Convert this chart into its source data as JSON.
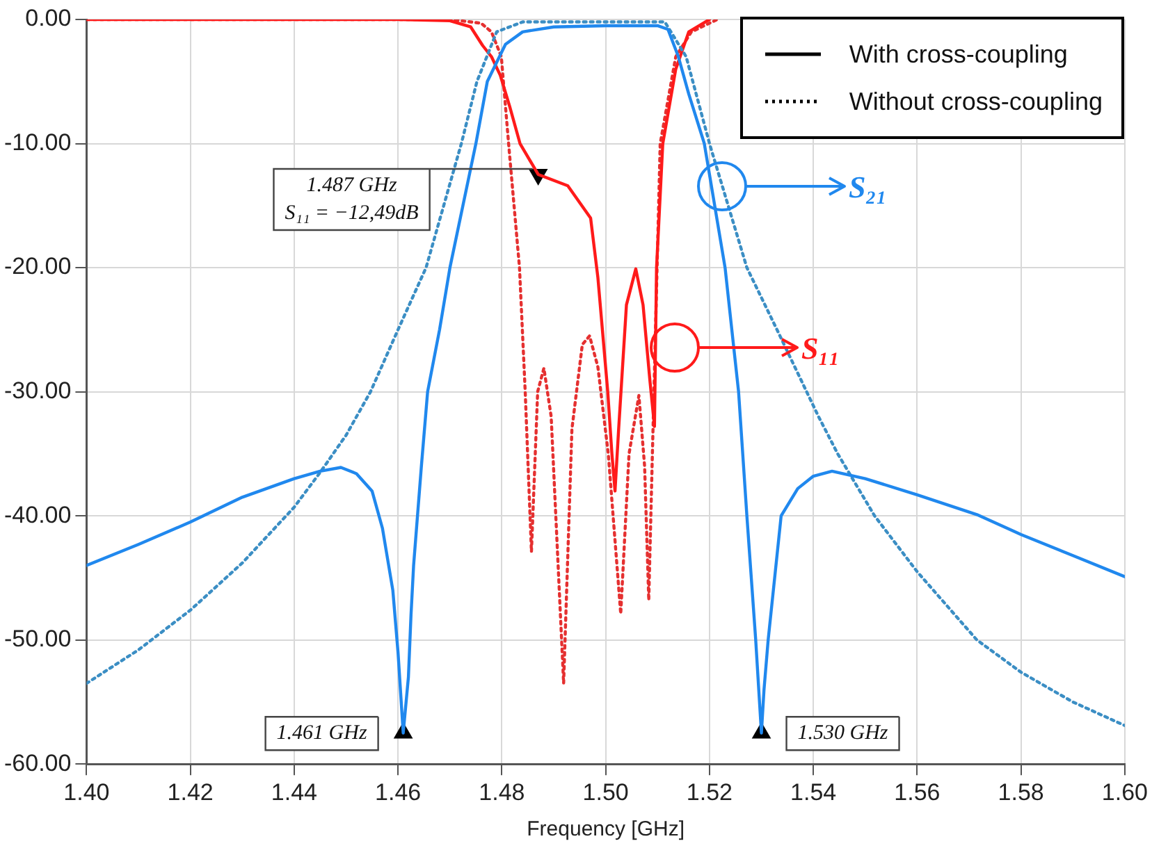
{
  "chart_data": {
    "type": "line",
    "xlabel": "Frequency [GHz]",
    "xlim": [
      1.4,
      1.6
    ],
    "xticks": [
      {
        "value": 1.4,
        "label": "1.40"
      },
      {
        "value": 1.42,
        "label": "1.42"
      },
      {
        "value": 1.44,
        "label": "1.44"
      },
      {
        "value": 1.46,
        "label": "1.46"
      },
      {
        "value": 1.48,
        "label": "1.48"
      },
      {
        "value": 1.5,
        "label": "1.50"
      },
      {
        "value": 1.52,
        "label": "1.52"
      },
      {
        "value": 1.54,
        "label": "1.54"
      },
      {
        "value": 1.56,
        "label": "1.56"
      },
      {
        "value": 1.58,
        "label": "1.58"
      },
      {
        "value": 1.6,
        "label": "1.60"
      }
    ],
    "ylim": [
      -60,
      0
    ],
    "yticks": [
      {
        "value": -60,
        "label": "-60.00"
      },
      {
        "value": -50,
        "label": "-50.00"
      },
      {
        "value": -40,
        "label": "-40.00"
      },
      {
        "value": -30,
        "label": "-30.00"
      },
      {
        "value": -20,
        "label": "-20.00"
      },
      {
        "value": -10,
        "label": "-10.00"
      },
      {
        "value": 0,
        "label": "0.00"
      }
    ],
    "grid": true,
    "marker": "none",
    "series": [
      {
        "color": "#2088ee",
        "line_style": "solid",
        "x": [
          1.4,
          1.41,
          1.42,
          1.43,
          1.44,
          1.445,
          1.449,
          1.452,
          1.455,
          1.457,
          1.459,
          1.46,
          1.461,
          1.462,
          1.4625,
          1.463,
          1.4645,
          1.4657,
          1.468,
          1.47,
          1.4725,
          1.475,
          1.4772,
          1.4807,
          1.484,
          1.49,
          1.5,
          1.51,
          1.512,
          1.514,
          1.516,
          1.519,
          1.523,
          1.5256,
          1.5272,
          1.5289,
          1.53,
          1.5305,
          1.5313,
          1.5338,
          1.537,
          1.54,
          1.5436,
          1.55,
          1.56,
          1.5715,
          1.58,
          1.59,
          1.6
        ],
        "values": [
          -44,
          -42.3,
          -40.5,
          -38.5,
          -37,
          -36.4,
          -36.1,
          -36.6,
          -38,
          -41,
          -46,
          -51,
          -57.5,
          -53,
          -48,
          -44,
          -36,
          -30,
          -25,
          -20,
          -15,
          -10,
          -5,
          -2,
          -1,
          -0.6,
          -0.5,
          -0.5,
          -0.8,
          -3,
          -6,
          -10,
          -20,
          -30,
          -40,
          -50,
          -57.5,
          -54,
          -50,
          -40,
          -37.8,
          -36.8,
          -36.4,
          -37,
          -38.3,
          -39.9,
          -41.5,
          -43.2,
          -44.9
        ]
      },
      {
        "color": "#3b8ec4",
        "line_style": "dotted",
        "x": [
          1.4,
          1.41,
          1.42,
          1.43,
          1.44,
          1.445,
          1.45,
          1.4547,
          1.46,
          1.4654,
          1.4722,
          1.4752,
          1.479,
          1.484,
          1.5,
          1.5114,
          1.5155,
          1.52,
          1.5272,
          1.533,
          1.541,
          1.5447,
          1.5518,
          1.56,
          1.5715,
          1.58,
          1.59,
          1.6
        ],
        "values": [
          -53.5,
          -50.8,
          -47.6,
          -43.8,
          -39.3,
          -36.5,
          -33.5,
          -30,
          -25,
          -20,
          -10,
          -5,
          -1,
          -0.2,
          -0.2,
          -0.2,
          -3,
          -10,
          -20,
          -25,
          -32,
          -35,
          -40,
          -44.5,
          -50,
          -52.6,
          -55,
          -56.9
        ]
      },
      {
        "color": "#ff1a1a",
        "line_style": "solid",
        "x": [
          1.4,
          1.46,
          1.47,
          1.474,
          1.4763,
          1.478,
          1.4797,
          1.4815,
          1.4835,
          1.487,
          1.4927,
          1.4971,
          1.4985,
          1.5004,
          1.5012,
          1.5018,
          1.5025,
          1.504,
          1.5058,
          1.5072,
          1.5085,
          1.5094,
          1.5098,
          1.511,
          1.5135,
          1.516,
          1.52
        ],
        "values": [
          0,
          0,
          -0.1,
          -0.6,
          -2.1,
          -3,
          -4.5,
          -7,
          -10,
          -12.49,
          -13.4,
          -16,
          -20.8,
          -30,
          -35,
          -38,
          -33,
          -23,
          -20.1,
          -23,
          -29,
          -32.8,
          -20,
          -10,
          -4,
          -1,
          0
        ]
      },
      {
        "color": "#e53030",
        "line_style": "dotted",
        "x": [
          1.4,
          1.47,
          1.476,
          1.478,
          1.4799,
          1.4813,
          1.4834,
          1.4845,
          1.4857,
          1.4869,
          1.4881,
          1.4895,
          1.4919,
          1.4935,
          1.4955,
          1.4969,
          1.4985,
          1.5005,
          1.5029,
          1.5045,
          1.5064,
          1.5075,
          1.5083,
          1.509,
          1.5105,
          1.5135,
          1.5165,
          1.5215
        ],
        "values": [
          0,
          0,
          -0.3,
          -1,
          -3,
          -10,
          -20,
          -30,
          -42.9,
          -30,
          -28.1,
          -32,
          -53.5,
          -33,
          -26.2,
          -25.5,
          -28,
          -35,
          -47.9,
          -35,
          -30.3,
          -36,
          -46.8,
          -35,
          -10,
          -3,
          -1,
          0
        ]
      },
      {
        "type": "scatter",
        "color": "#000000",
        "marker": "triangle",
        "x": [
          1.487,
          1.461,
          1.53
        ],
        "values": [
          -12.49,
          -57.5,
          -57.5
        ]
      }
    ],
    "annotations": [
      "1.487 GHz\nS₁₁ = −12,49dB",
      "1.461 GHz",
      "1.530 GHz",
      "S₂₁",
      "S₁₁",
      "With cross-coupling",
      "Without cross-coupling"
    ]
  }
}
